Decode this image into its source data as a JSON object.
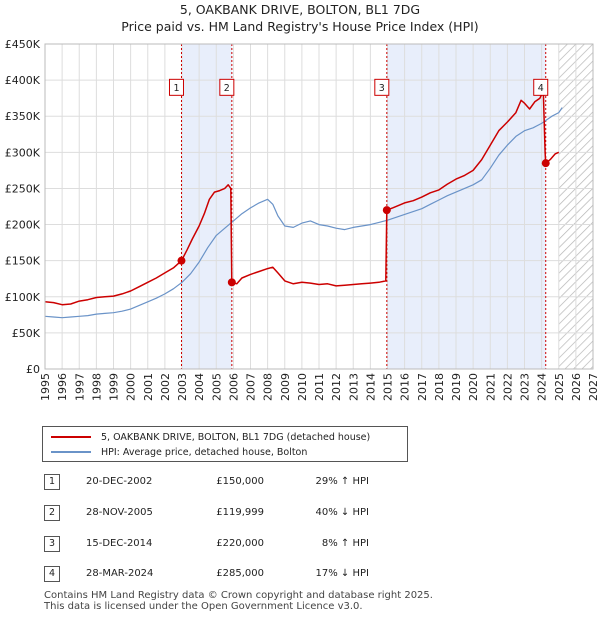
{
  "chart_data": {
    "type": "line",
    "title": "5, OAKBANK DRIVE, BOLTON, BL1 7DG",
    "subtitle": "Price paid vs. HM Land Registry's House Price Index (HPI)",
    "xlim": [
      1995,
      2027
    ],
    "ylim": [
      0,
      450000
    ],
    "x_ticks": [
      "1995",
      "1996",
      "1997",
      "1998",
      "1999",
      "2000",
      "2001",
      "2002",
      "2003",
      "2004",
      "2005",
      "2006",
      "2007",
      "2008",
      "2009",
      "2010",
      "2011",
      "2012",
      "2013",
      "2014",
      "2015",
      "2016",
      "2017",
      "2018",
      "2019",
      "2020",
      "2021",
      "2022",
      "2023",
      "2024",
      "2025",
      "2026",
      "2027"
    ],
    "y_ticks": [
      {
        "value": 0,
        "label": "£0"
      },
      {
        "value": 50000,
        "label": "£50K"
      },
      {
        "value": 100000,
        "label": "£100K"
      },
      {
        "value": 150000,
        "label": "£150K"
      },
      {
        "value": 200000,
        "label": "£200K"
      },
      {
        "value": 250000,
        "label": "£250K"
      },
      {
        "value": 300000,
        "label": "£300K"
      },
      {
        "value": 350000,
        "label": "£350K"
      },
      {
        "value": 400000,
        "label": "£400K"
      },
      {
        "value": 450000,
        "label": "£450K"
      }
    ],
    "future_start": 2025.0,
    "ownership_periods": [
      [
        2002.97,
        2005.91
      ],
      [
        2014.96,
        2024.24
      ]
    ],
    "series": [
      {
        "name": "5, OAKBANK DRIVE, BOLTON, BL1 7DG (detached house)",
        "color": "#cc0000",
        "points": [
          [
            1995.0,
            93000
          ],
          [
            1995.5,
            92000
          ],
          [
            1996.0,
            89000
          ],
          [
            1996.5,
            90000
          ],
          [
            1997.0,
            94000
          ],
          [
            1997.5,
            96000
          ],
          [
            1998.0,
            99000
          ],
          [
            1998.5,
            100000
          ],
          [
            1999.0,
            101000
          ],
          [
            1999.5,
            104000
          ],
          [
            2000.0,
            108000
          ],
          [
            2000.5,
            114000
          ],
          [
            2001.0,
            120000
          ],
          [
            2001.5,
            126000
          ],
          [
            2002.0,
            133000
          ],
          [
            2002.5,
            140000
          ],
          [
            2002.97,
            150000
          ],
          [
            2003.3,
            165000
          ],
          [
            2003.6,
            180000
          ],
          [
            2004.0,
            198000
          ],
          [
            2004.3,
            215000
          ],
          [
            2004.6,
            235000
          ],
          [
            2004.9,
            245000
          ],
          [
            2005.2,
            247000
          ],
          [
            2005.5,
            250000
          ],
          [
            2005.7,
            255000
          ],
          [
            2005.85,
            250000
          ],
          [
            2005.91,
            119999
          ],
          [
            2006.2,
            118000
          ],
          [
            2006.5,
            126000
          ],
          [
            2007.0,
            131000
          ],
          [
            2007.5,
            135000
          ],
          [
            2008.0,
            139000
          ],
          [
            2008.3,
            141000
          ],
          [
            2008.6,
            133000
          ],
          [
            2009.0,
            122000
          ],
          [
            2009.5,
            118000
          ],
          [
            2010.0,
            120000
          ],
          [
            2010.5,
            119000
          ],
          [
            2011.0,
            117000
          ],
          [
            2011.5,
            118000
          ],
          [
            2012.0,
            115000
          ],
          [
            2012.5,
            116000
          ],
          [
            2013.0,
            117000
          ],
          [
            2013.5,
            118000
          ],
          [
            2014.0,
            119000
          ],
          [
            2014.5,
            120000
          ],
          [
            2014.9,
            122000
          ],
          [
            2014.96,
            220000
          ],
          [
            2015.3,
            223000
          ],
          [
            2015.7,
            227000
          ],
          [
            2016.0,
            230000
          ],
          [
            2016.5,
            233000
          ],
          [
            2017.0,
            238000
          ],
          [
            2017.5,
            244000
          ],
          [
            2018.0,
            248000
          ],
          [
            2018.5,
            256000
          ],
          [
            2019.0,
            263000
          ],
          [
            2019.5,
            268000
          ],
          [
            2020.0,
            275000
          ],
          [
            2020.5,
            290000
          ],
          [
            2021.0,
            310000
          ],
          [
            2021.5,
            330000
          ],
          [
            2022.0,
            342000
          ],
          [
            2022.5,
            355000
          ],
          [
            2022.8,
            372000
          ],
          [
            2023.0,
            368000
          ],
          [
            2023.3,
            360000
          ],
          [
            2023.6,
            370000
          ],
          [
            2023.9,
            375000
          ],
          [
            2024.1,
            385000
          ],
          [
            2024.2,
            300000
          ],
          [
            2024.24,
            285000
          ],
          [
            2024.5,
            290000
          ],
          [
            2024.8,
            298000
          ],
          [
            2025.0,
            300000
          ]
        ]
      },
      {
        "name": "HPI: Average price, detached house, Bolton",
        "color": "#6a93c8",
        "points": [
          [
            1995.0,
            73000
          ],
          [
            1995.5,
            72000
          ],
          [
            1996.0,
            71000
          ],
          [
            1996.5,
            72000
          ],
          [
            1997.0,
            73000
          ],
          [
            1997.5,
            74000
          ],
          [
            1998.0,
            76000
          ],
          [
            1998.5,
            77000
          ],
          [
            1999.0,
            78000
          ],
          [
            1999.5,
            80000
          ],
          [
            2000.0,
            83000
          ],
          [
            2000.5,
            88000
          ],
          [
            2001.0,
            93000
          ],
          [
            2001.5,
            98000
          ],
          [
            2002.0,
            104000
          ],
          [
            2002.5,
            111000
          ],
          [
            2003.0,
            120000
          ],
          [
            2003.5,
            132000
          ],
          [
            2004.0,
            148000
          ],
          [
            2004.5,
            168000
          ],
          [
            2005.0,
            185000
          ],
          [
            2005.5,
            195000
          ],
          [
            2006.0,
            205000
          ],
          [
            2006.5,
            215000
          ],
          [
            2007.0,
            223000
          ],
          [
            2007.5,
            230000
          ],
          [
            2008.0,
            235000
          ],
          [
            2008.3,
            228000
          ],
          [
            2008.6,
            212000
          ],
          [
            2009.0,
            198000
          ],
          [
            2009.5,
            196000
          ],
          [
            2010.0,
            202000
          ],
          [
            2010.5,
            205000
          ],
          [
            2011.0,
            200000
          ],
          [
            2011.5,
            198000
          ],
          [
            2012.0,
            195000
          ],
          [
            2012.5,
            193000
          ],
          [
            2013.0,
            196000
          ],
          [
            2013.5,
            198000
          ],
          [
            2014.0,
            200000
          ],
          [
            2014.5,
            203000
          ],
          [
            2015.0,
            206000
          ],
          [
            2015.5,
            210000
          ],
          [
            2016.0,
            214000
          ],
          [
            2016.5,
            218000
          ],
          [
            2017.0,
            222000
          ],
          [
            2017.5,
            228000
          ],
          [
            2018.0,
            234000
          ],
          [
            2018.5,
            240000
          ],
          [
            2019.0,
            245000
          ],
          [
            2019.5,
            250000
          ],
          [
            2020.0,
            255000
          ],
          [
            2020.5,
            262000
          ],
          [
            2021.0,
            278000
          ],
          [
            2021.5,
            296000
          ],
          [
            2022.0,
            310000
          ],
          [
            2022.5,
            322000
          ],
          [
            2023.0,
            330000
          ],
          [
            2023.5,
            334000
          ],
          [
            2024.0,
            340000
          ],
          [
            2024.3,
            345000
          ],
          [
            2024.6,
            350000
          ],
          [
            2025.0,
            355000
          ],
          [
            2025.2,
            362000
          ]
        ]
      }
    ],
    "sales": [
      {
        "label": "1",
        "x": 2002.97,
        "price": 150000,
        "date": "20-DEC-2002",
        "price_label": "£150,000",
        "hpi": "29% ↑ HPI"
      },
      {
        "label": "2",
        "x": 2005.91,
        "price": 119999,
        "date": "28-NOV-2005",
        "price_label": "£119,999",
        "hpi": "40% ↓ HPI"
      },
      {
        "label": "3",
        "x": 2014.96,
        "price": 220000,
        "date": "15-DEC-2014",
        "price_label": "£220,000",
        "hpi": "8% ↑ HPI"
      },
      {
        "label": "4",
        "x": 2024.24,
        "price": 285000,
        "date": "28-MAR-2024",
        "price_label": "£285,000",
        "hpi": "17% ↓ HPI"
      }
    ],
    "annotation_price": 390000
  },
  "legend": {
    "red_label": "5, OAKBANK DRIVE, BOLTON, BL1 7DG (detached house)",
    "blue_label": "HPI: Average price, detached house, Bolton",
    "red_color": "#cc0000",
    "blue_color": "#6a93c8"
  },
  "footer": {
    "line1": "Contains HM Land Registry data © Crown copyright and database right 2025.",
    "line2": "This data is licensed under the Open Government Licence v3.0."
  }
}
